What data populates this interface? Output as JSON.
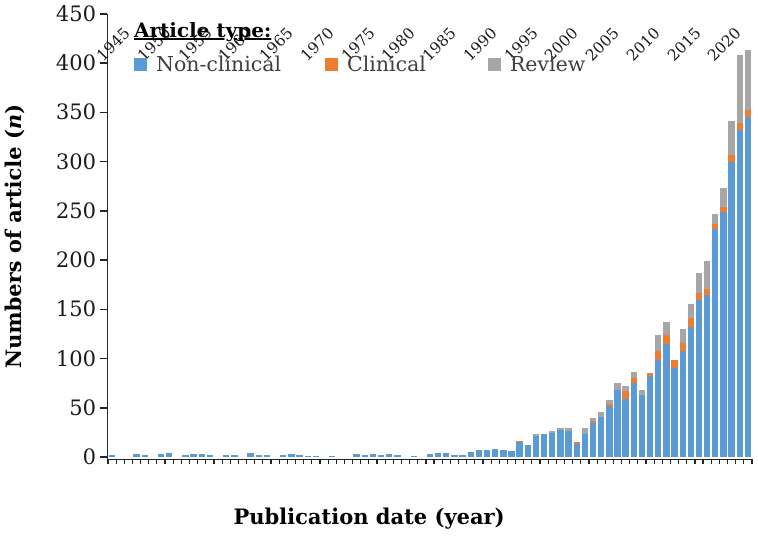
{
  "chart_data": {
    "type": "bar",
    "stacked": true,
    "title": "",
    "xlabel": "Publication date (year)",
    "ylabel": "Numbers of article (n)",
    "ylabel_parts": {
      "prefix": "Numbers of article (",
      "italic": "n",
      "suffix": ")"
    },
    "legend_title": "Article type:",
    "legend_position": "top-left-inside",
    "grid": false,
    "ylim": [
      0,
      450
    ],
    "ytick_step": 50,
    "yticks": [
      0,
      50,
      100,
      150,
      200,
      250,
      300,
      350,
      400,
      450
    ],
    "xtick_label_every": 5,
    "xtick_labels_shown": [
      "1945",
      "1950",
      "1955",
      "1960",
      "1965",
      "1970",
      "1975",
      "1980",
      "1985",
      "1990",
      "1995",
      "2000",
      "2005",
      "2010",
      "2015",
      "2020"
    ],
    "categories": [
      1945,
      1946,
      1947,
      1948,
      1949,
      1950,
      1951,
      1952,
      1953,
      1954,
      1955,
      1956,
      1957,
      1958,
      1959,
      1960,
      1961,
      1962,
      1963,
      1964,
      1965,
      1966,
      1967,
      1968,
      1969,
      1970,
      1971,
      1972,
      1973,
      1974,
      1975,
      1976,
      1977,
      1978,
      1979,
      1980,
      1981,
      1982,
      1983,
      1984,
      1985,
      1986,
      1987,
      1988,
      1989,
      1990,
      1991,
      1992,
      1993,
      1994,
      1995,
      1996,
      1997,
      1998,
      1999,
      2000,
      2001,
      2002,
      2003,
      2004,
      2005,
      2006,
      2007,
      2008,
      2009,
      2010,
      2011,
      2012,
      2013,
      2014,
      2015,
      2016,
      2017,
      2018,
      2019,
      2020,
      2021,
      2022,
      2023
    ],
    "series": [
      {
        "name": "Non-clinical",
        "color": "#5B9BD5",
        "values": [
          2,
          0,
          0,
          3,
          2,
          0,
          3,
          4,
          0,
          2,
          3,
          3,
          2,
          0,
          2,
          2,
          0,
          4,
          2,
          2,
          0,
          2,
          3,
          2,
          1,
          1,
          0,
          1,
          0,
          0,
          3,
          2,
          3,
          2,
          3,
          2,
          0,
          1,
          0,
          3,
          4,
          4,
          2,
          2,
          5,
          7,
          7,
          8,
          7,
          6,
          15,
          12,
          21,
          23,
          24,
          27,
          26,
          13,
          23,
          35,
          41,
          52,
          68,
          59,
          75,
          63,
          82,
          99,
          115,
          90,
          108,
          132,
          160,
          165,
          232,
          249,
          300,
          332,
          345
        ]
      },
      {
        "name": "Clinical",
        "color": "#ED7D31",
        "values": [
          0,
          0,
          0,
          0,
          0,
          0,
          0,
          0,
          0,
          0,
          0,
          0,
          0,
          0,
          0,
          0,
          0,
          0,
          0,
          0,
          0,
          0,
          0,
          0,
          0,
          0,
          0,
          0,
          0,
          0,
          0,
          0,
          0,
          0,
          0,
          0,
          0,
          0,
          0,
          0,
          0,
          0,
          0,
          0,
          0,
          0,
          0,
          0,
          0,
          0,
          1,
          0,
          0,
          0,
          0,
          0,
          0,
          2,
          0,
          2,
          0,
          2,
          0,
          8,
          5,
          0,
          3,
          9,
          9,
          9,
          8,
          9,
          7,
          6,
          5,
          5,
          7,
          7,
          8
        ]
      },
      {
        "name": "Review",
        "color": "#A6A6A6",
        "values": [
          0,
          0,
          0,
          0,
          0,
          0,
          0,
          0,
          0,
          0,
          0,
          0,
          0,
          0,
          0,
          0,
          0,
          0,
          0,
          0,
          0,
          0,
          0,
          0,
          0,
          0,
          0,
          0,
          0,
          0,
          0,
          0,
          0,
          0,
          0,
          0,
          0,
          0,
          0,
          0,
          0,
          0,
          0,
          0,
          0,
          0,
          0,
          0,
          0,
          0,
          0,
          0,
          2,
          0,
          2,
          2,
          3,
          0,
          6,
          3,
          5,
          4,
          7,
          5,
          6,
          5,
          0,
          16,
          13,
          0,
          14,
          14,
          20,
          28,
          10,
          19,
          34,
          69,
          60
        ]
      }
    ]
  }
}
